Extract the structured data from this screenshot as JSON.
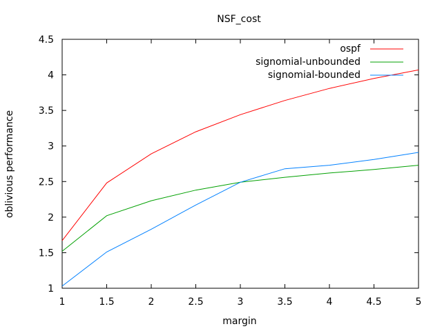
{
  "chart_data": {
    "type": "line",
    "title": "NSF_cost",
    "xlabel": "margin",
    "ylabel": "oblivious performance",
    "xlim": [
      1,
      5
    ],
    "ylim": [
      1,
      4.5
    ],
    "xticks": [
      "1",
      "1.5",
      "2",
      "2.5",
      "3",
      "3.5",
      "4",
      "4.5",
      "5"
    ],
    "yticks": [
      "1",
      "1.5",
      "2",
      "2.5",
      "3",
      "3.5",
      "4",
      "4.5"
    ],
    "grid": false,
    "legend_position": "top-right",
    "x": [
      1,
      1.5,
      2,
      2.5,
      3,
      3.5,
      4,
      4.5,
      5
    ],
    "series": [
      {
        "name": "ospf",
        "color": "#ff0000",
        "values": [
          1.67,
          2.48,
          2.89,
          3.2,
          3.44,
          3.64,
          3.81,
          3.95,
          4.07
        ]
      },
      {
        "name": "signomial-unbounded",
        "color": "#00a000",
        "values": [
          1.52,
          2.02,
          2.23,
          2.38,
          2.49,
          2.56,
          2.62,
          2.67,
          2.73
        ]
      },
      {
        "name": "signomial-bounded",
        "color": "#0080ff",
        "values": [
          1.03,
          1.51,
          1.83,
          2.17,
          2.49,
          2.68,
          2.73,
          2.81,
          2.91
        ]
      }
    ]
  }
}
